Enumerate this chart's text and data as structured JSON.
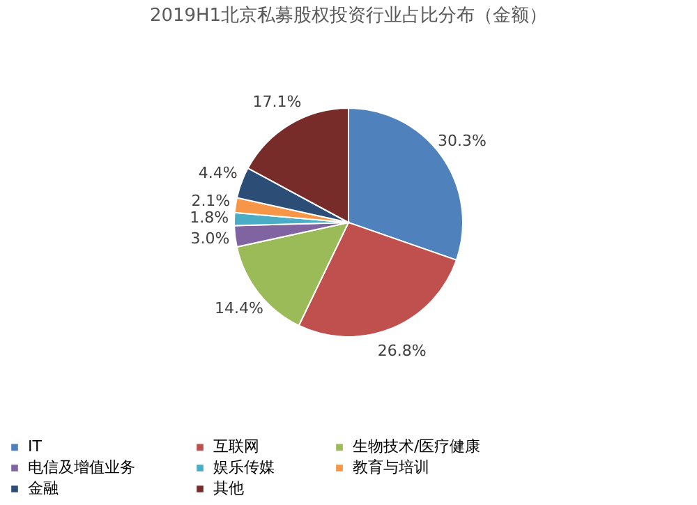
{
  "chart_data": {
    "type": "pie",
    "title": "2019H1北京私募股权投资行业占比分布（金额）",
    "categories": [
      "IT",
      "互联网",
      "生物技术/医疗健康",
      "电信及增值业务",
      "娱乐传媒",
      "教育与培训",
      "金融",
      "其他"
    ],
    "values": [
      30.3,
      26.8,
      14.4,
      3.0,
      1.8,
      2.1,
      4.4,
      17.1
    ],
    "value_labels": [
      "30.3%",
      "26.8%",
      "14.4%",
      "3.0%",
      "1.8%",
      "2.1%",
      "4.4%",
      "17.1%"
    ],
    "colors": [
      "#4f81bd",
      "#c0504d",
      "#9bbb59",
      "#8064a2",
      "#4bacc6",
      "#f79646",
      "#2c4d75",
      "#772c2a"
    ],
    "legend": "bottom"
  }
}
